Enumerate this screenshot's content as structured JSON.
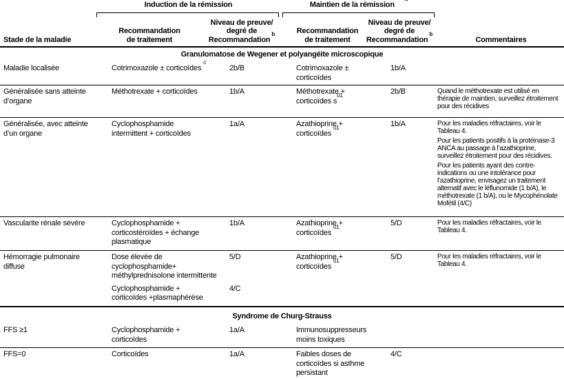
{
  "header": {
    "stage_col": "Stade de la maladie",
    "induction_group": "Induction de la rémission",
    "maintenance_group": "Maintien de la rémission",
    "maintenance_group_sup": "a",
    "treatment_col_line1": "Recommandation",
    "treatment_col_line2": "de traitement",
    "level_col_line1": "Niveau de preuve/",
    "level_col_line2": "degré de",
    "level_col_line3": "Recommandation",
    "level_col_sup": "b",
    "comments_col": "Commentaires"
  },
  "sections": [
    {
      "title": "Granulomatose de Wegener et polyangéite microscopique",
      "rows": [
        {
          "stage": "Maladie localisée",
          "ind_treatment": "Cotrimoxazole ± corticoïdes",
          "ind_sup": "c",
          "ind_level": "2b/B",
          "maint_treatment": "Cotrimoxazole ± corticoïdes",
          "maint_level": "1b/A",
          "comments": []
        },
        {
          "stage": "Généralisée sans atteinte d’organe",
          "ind_treatment": "Méthotrexate + corticoïdes",
          "ind_level": "1b/A",
          "maint_treatment": "Méthotrexate + corticoïdes s",
          "maint_sup": "01",
          "maint_level": "2b/B",
          "comments": [
            "Quand le méthotrexate est utilisé en thérapie de maintien, surveillez étroitement pour des récidives"
          ]
        },
        {
          "stage": "Généralisée, avec atteinte d’un organe",
          "ind_treatment": "Cyclophosphamide intermittent + corticoïdes",
          "ind_level": "1a/A",
          "maint_treatment": "Azathioprine + corticoïdes",
          "maint_sup": "01",
          "maint_level": "1b/A",
          "comments": [
            "Pour les maladies réfractaires, voir le Tableau 4.",
            "Pour les patients positifs à la protéinase-3 ANCA au passage à l’azathioprine, surveillez étroitement pour des récidives.",
            "Pour les patients ayant des contre-indications ou une intolérance pour l’azathioprine, envisagez un traitement alternatif avec le léflunomide (1 b/A), le méthotrexate (1 b/A), ou le Mycophénolate Mofétil (4/C)"
          ]
        },
        {
          "stage": "Vascularite rénale sévère",
          "ind_treatment": "Cyclophosphamide + corticostéroïdes + échange plasmatique",
          "ind_level": "1b/A",
          "maint_treatment": "Azathioprine + corticoïdes",
          "maint_sup": "01",
          "maint_level": "5/D",
          "comments": [
            "Pour les maladies réfractaires, voir le Tableau 4."
          ]
        },
        {
          "stage": "Hémorragie pulmonaire diffuse",
          "ind_blocks": [
            {
              "treatment_lines": [
                "Dose élevée de",
                "cyclophosphamide+",
                "méthylprednisolone intermittente"
              ],
              "level": "5/D"
            },
            {
              "treatment": "Cyclophosphamide + corticoïdes +plasmaphérèse",
              "level": "4/C"
            }
          ],
          "maint_treatment": "Azathioprine + corticoïdes",
          "maint_sup": "01",
          "maint_level": "5/D",
          "comments": [
            "Pour les maladies réfractaires, voir le Tableau 4."
          ]
        }
      ]
    },
    {
      "title": "Syndrome de Churg-Strauss",
      "rows": [
        {
          "stage": "FFS ≥1",
          "ind_treatment": "Cyclophosphamide + corticoïdes",
          "ind_level": "1a/A",
          "maint_treatment": "Immunosuppresseurs moins toxiques",
          "maint_level": "",
          "comments": []
        },
        {
          "stage": "FFS=0",
          "ind_treatment": "Corticoïdes",
          "ind_level": "1a/A",
          "maint_treatment": "Faibles doses de corticoïdes si asthme persistant",
          "maint_level": "4/C",
          "comments": []
        }
      ]
    }
  ]
}
